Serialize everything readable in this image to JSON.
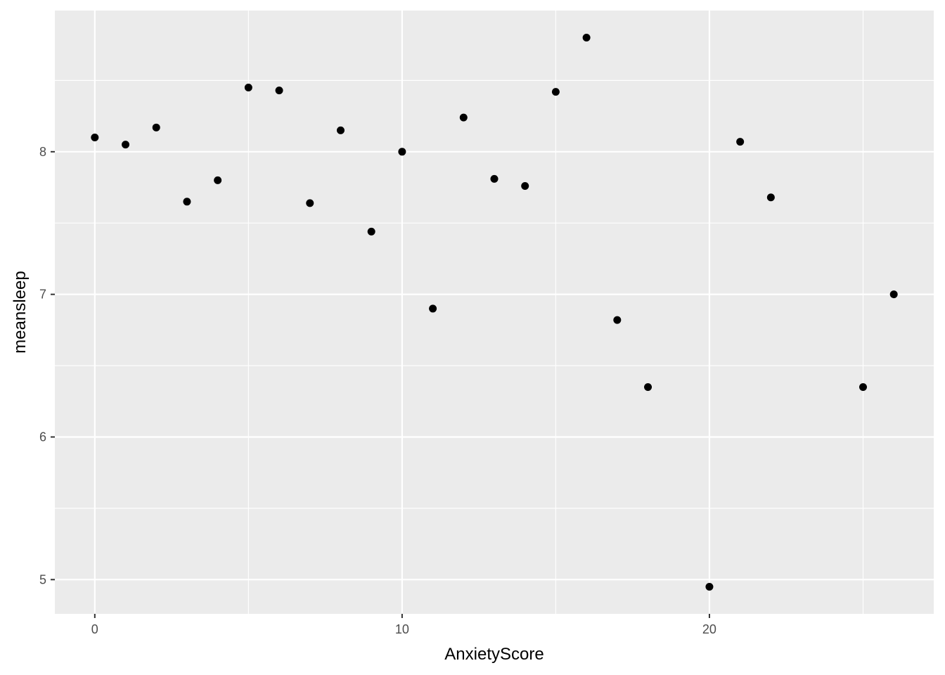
{
  "chart_data": {
    "type": "scatter",
    "x_label": "AnxietyScore",
    "y_label": "meansleep",
    "x": [
      0,
      1,
      2,
      3,
      4,
      5,
      6,
      7,
      8,
      9,
      10,
      11,
      12,
      13,
      14,
      15,
      16,
      17,
      18,
      20,
      21,
      22,
      25,
      26
    ],
    "values": [
      8.1,
      8.05,
      8.17,
      7.65,
      7.8,
      8.45,
      8.43,
      7.64,
      8.15,
      7.44,
      8.0,
      6.9,
      8.24,
      7.81,
      7.76,
      8.42,
      8.8,
      6.82,
      6.35,
      4.95,
      8.07,
      7.68,
      6.35,
      7.0
    ],
    "color": "#000000",
    "xlim": [
      -1.3,
      27.3
    ],
    "ylim": [
      4.76,
      8.99
    ],
    "xticks": [
      0,
      10,
      20
    ],
    "yticks": [
      5,
      6,
      7,
      8
    ],
    "x_minor_grid": [
      5,
      15,
      25
    ],
    "y_minor_grid": [
      5.5,
      6.5,
      7.5,
      8.5
    ],
    "grid": true,
    "panel_color": "#EBEBEB"
  }
}
